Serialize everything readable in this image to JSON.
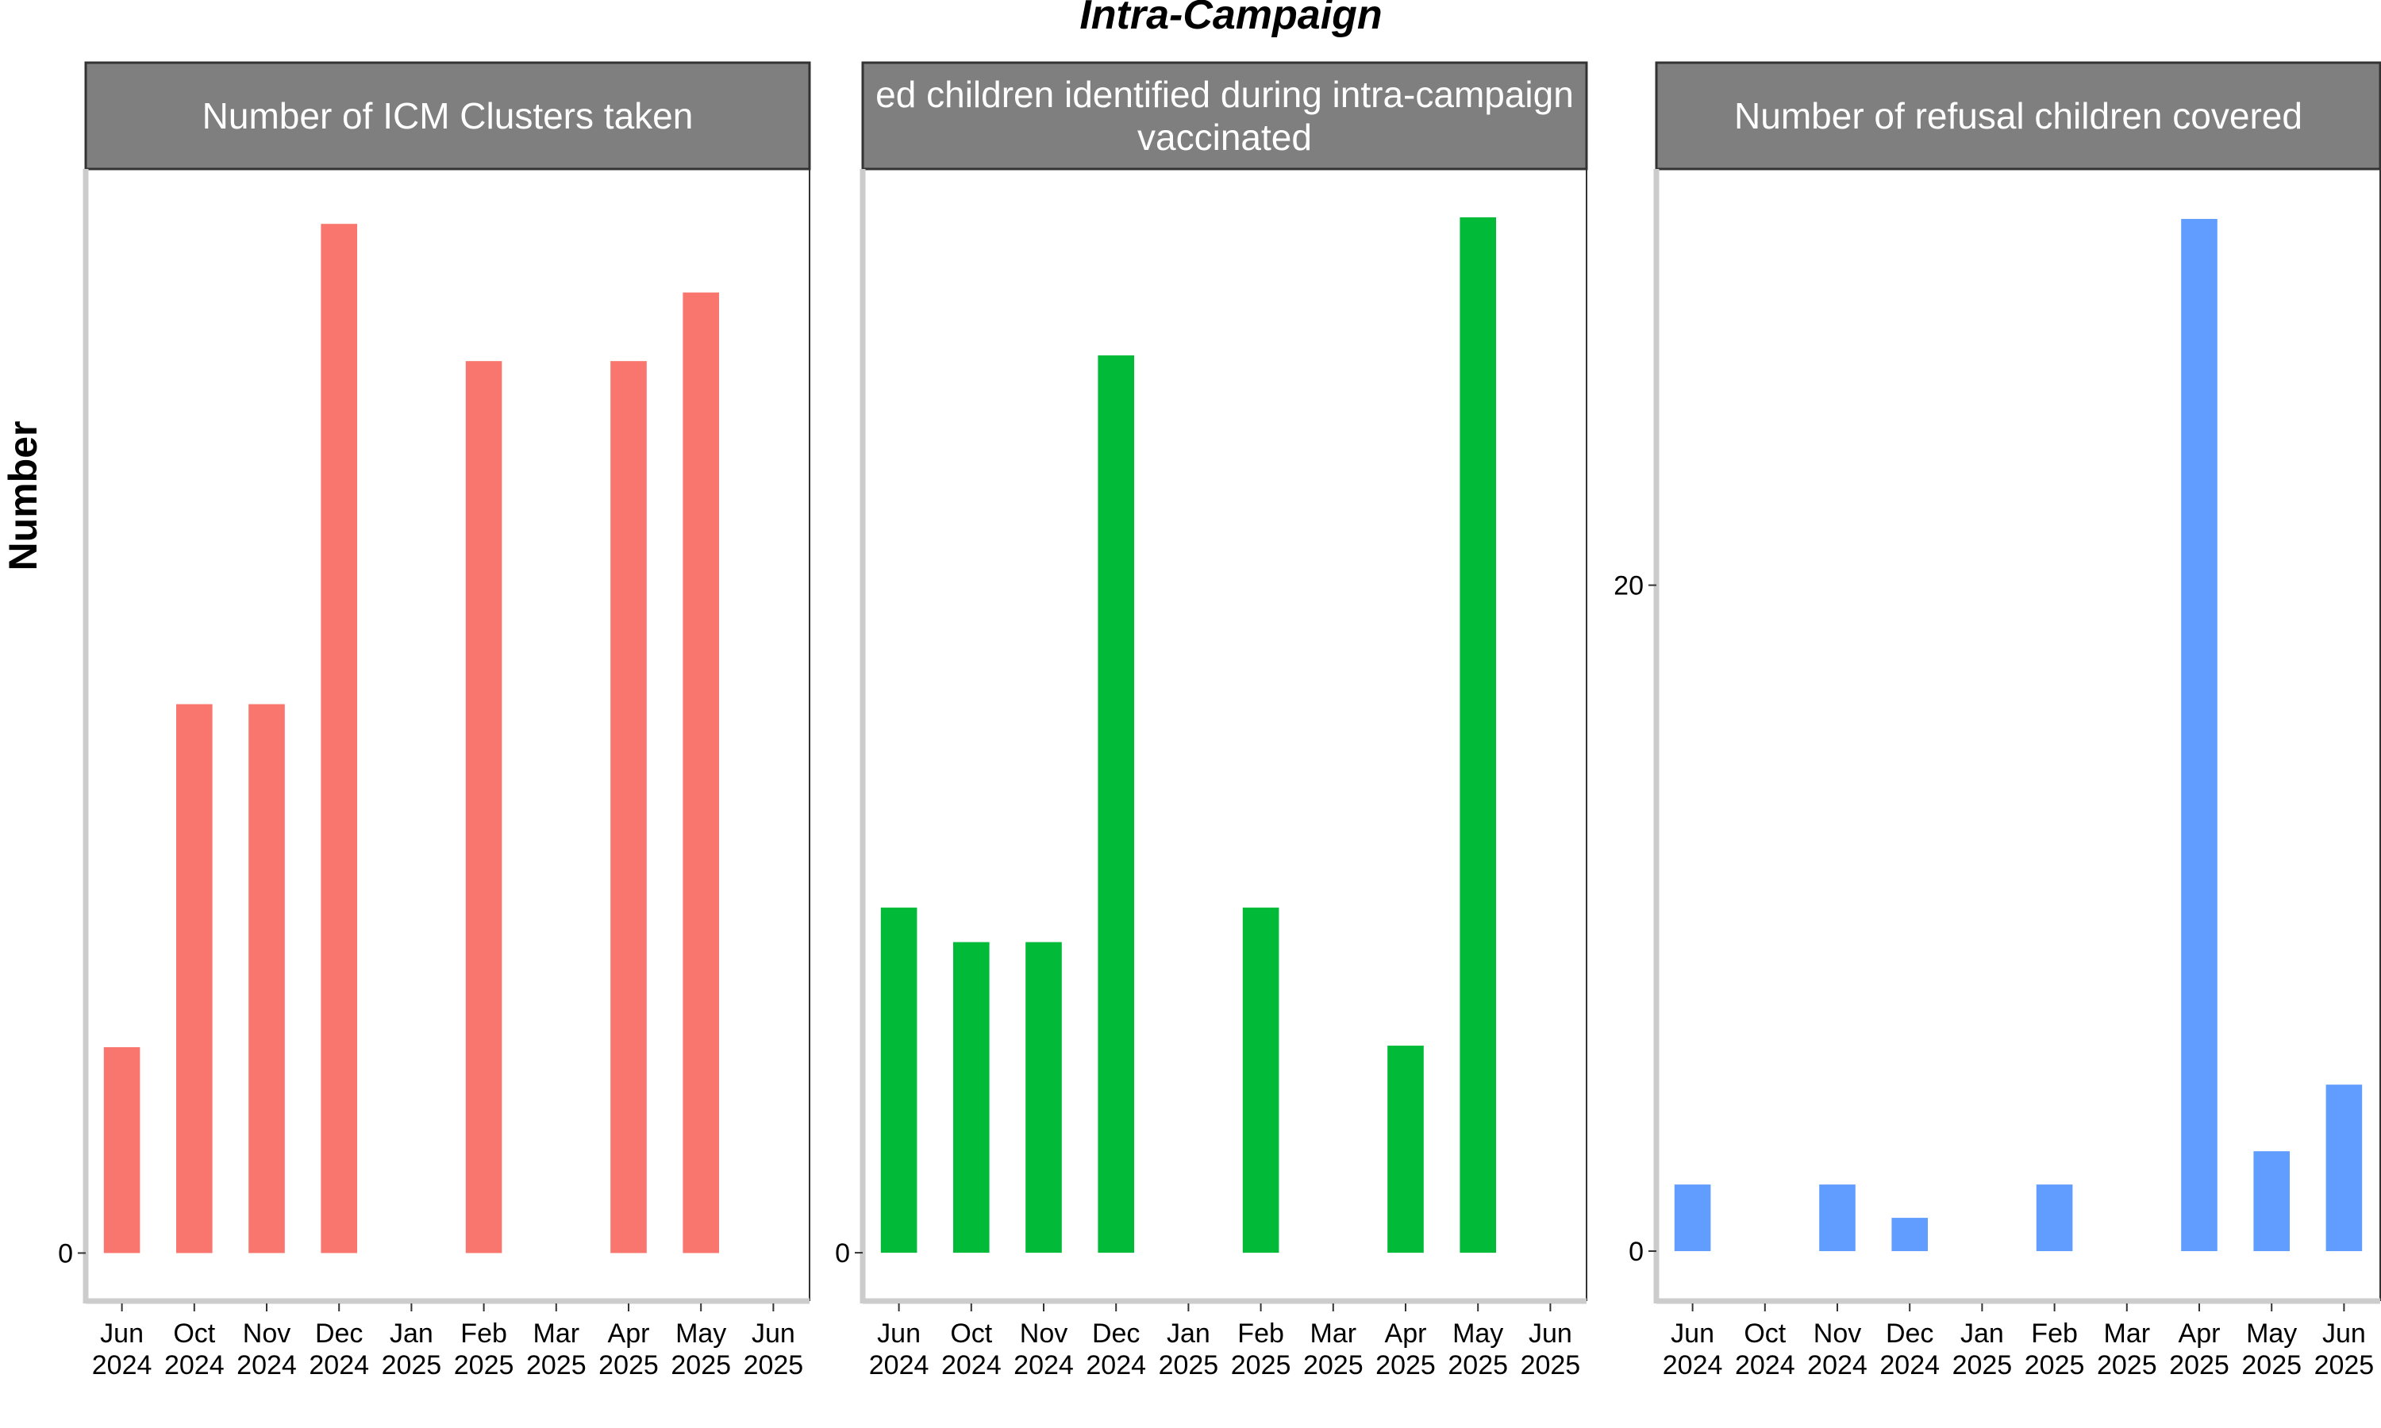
{
  "chart_data": {
    "type": "bar",
    "title": "Intra-Campaign",
    "ylabel": "Number",
    "xlabel": "",
    "x_tick_labels": [
      [
        "Jun",
        "2024"
      ],
      [
        "Oct",
        "2024"
      ],
      [
        "Nov",
        "2024"
      ],
      [
        "Dec",
        "2024"
      ],
      [
        "Jan",
        "2025"
      ],
      [
        "Feb",
        "2025"
      ],
      [
        "Mar",
        "2025"
      ],
      [
        "Apr",
        "2025"
      ],
      [
        "May",
        "2025"
      ],
      [
        "Jun",
        "2025"
      ]
    ],
    "grid": false,
    "legend": "none",
    "panels": [
      {
        "strip_label": [
          "Number of ICM Clusters taken"
        ],
        "color": "#F8766D",
        "values": [
          1.5,
          4,
          4,
          7.5,
          0,
          6.5,
          0,
          6.5,
          7,
          0
        ],
        "y_ticks": [
          "0"
        ],
        "y_tick_values": [
          0
        ],
        "ylim": [
          -0.35,
          7.9
        ]
      },
      {
        "strip_label": [
          "ed children identified during intra-campaign",
          "vaccinated"
        ],
        "color": "#00BA38",
        "values": [
          5,
          4.5,
          4.5,
          13,
          0,
          5,
          0,
          3,
          15,
          0
        ],
        "y_ticks": [
          "0"
        ],
        "y_tick_values": [
          0
        ],
        "ylim": [
          -0.7,
          15.7
        ]
      },
      {
        "strip_label": [
          "Number of refusal children covered"
        ],
        "color": "#619CFF",
        "values": [
          2,
          0,
          2,
          1,
          0,
          2,
          0,
          31,
          3,
          5
        ],
        "y_ticks": [
          "0",
          "20"
        ],
        "y_tick_values": [
          0,
          20
        ],
        "ylim": [
          -1.5,
          32.5
        ]
      }
    ]
  }
}
